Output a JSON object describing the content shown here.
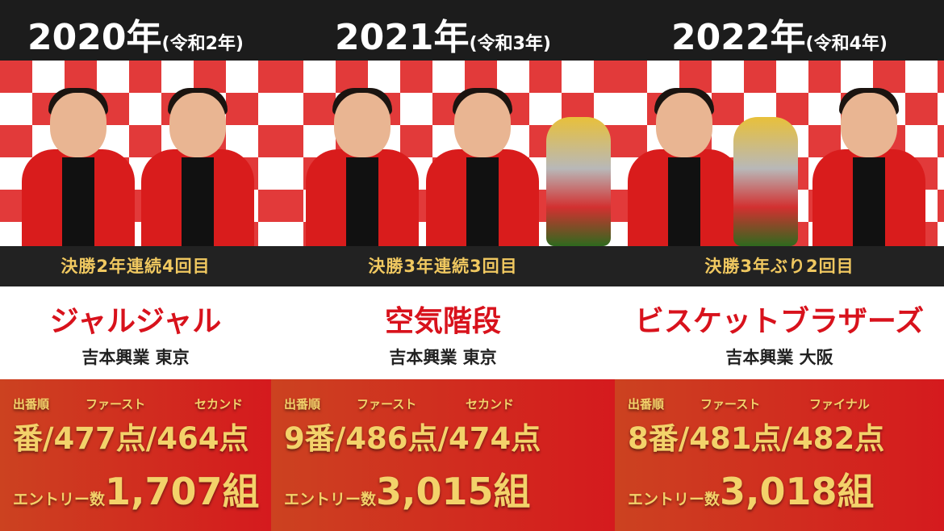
{
  "columns": [
    {
      "year": "2020年",
      "era": "(令和2年)",
      "streak": "決勝2年連続4回目",
      "name": "ジャルジャル",
      "agency": "吉本興業 東京",
      "labels": [
        "出番順",
        "ファースト",
        "セカンド"
      ],
      "scores": "番/477点/464点",
      "entry_label": "エントリー数",
      "entry_value": "1,707組"
    },
    {
      "year": "2021年",
      "era": "(令和3年)",
      "streak": "決勝3年連続3回目",
      "name": "空気階段",
      "agency": "吉本興業 東京",
      "labels": [
        "出番順",
        "ファースト",
        "セカンド"
      ],
      "scores": "9番/486点/474点",
      "entry_label": "エントリー数",
      "entry_value": "3,015組"
    },
    {
      "year": "2022年",
      "era": "(令和4年)",
      "streak": "決勝3年ぶり2回目",
      "name": "ビスケットブラザーズ",
      "agency": "吉本興業 大阪",
      "labels": [
        "出番順",
        "ファースト",
        "ファイナル"
      ],
      "scores": "8番/481点/482点",
      "entry_label": "エントリー数",
      "entry_value": "3,018組"
    }
  ],
  "colors": {
    "header": "#1c1c1c",
    "gold": "#f3d26a",
    "name_red": "#d8121c",
    "panel_red": "#d51a1e"
  }
}
